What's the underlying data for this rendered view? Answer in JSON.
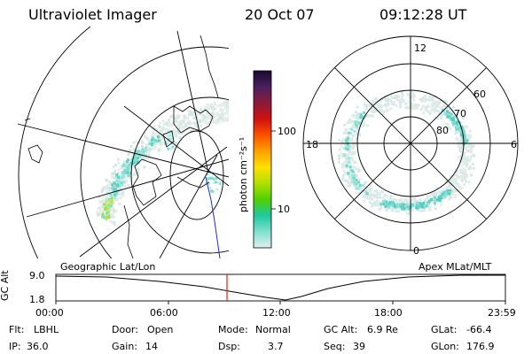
{
  "header": {
    "title": "Ultraviolet Imager",
    "date": "20 Oct 07",
    "time": "09:12:28 UT"
  },
  "colorbar": {
    "unit_label": "photon cm⁻²s⁻¹",
    "ticks": [
      "100",
      "10"
    ],
    "colors": [
      "#1a0a30",
      "#4a2060",
      "#8b1a3a",
      "#d01010",
      "#ff5000",
      "#ffa000",
      "#ffe000",
      "#b0e000",
      "#50d000",
      "#20c8a0",
      "#80e0d0",
      "#e0f0f0"
    ]
  },
  "left_panel": {
    "label": "Geographic Lat/Lon"
  },
  "right_panel": {
    "label": "Apex MLat/MLT",
    "mlt_labels": {
      "top": "12",
      "left": "18",
      "right": "6",
      "bottom": "0"
    },
    "lat_labels": [
      "60",
      "70",
      "80"
    ]
  },
  "altitude_strip": {
    "ylabel": "GC Alt",
    "y_ticks": [
      "9.0",
      "1.8"
    ],
    "x_ticks": [
      "00:00",
      "06:00",
      "12:00",
      "18:00",
      "23:59"
    ],
    "current_marker_color": "#e02020"
  },
  "status": {
    "flt_label": "Flt:",
    "flt_value": "LBHL",
    "ip_label": "IP:",
    "ip_value": "36.0",
    "door_label": "Door:",
    "door_value": "Open",
    "gain_label": "Gain:",
    "gain_value": "14",
    "mode_label": "Mode:",
    "mode_value": "Normal",
    "dsp_label": "Dsp:",
    "dsp_value": "3.7",
    "gcalt_label": "GC Alt:",
    "gcalt_value": "6.9 Re",
    "seq_label": "Seq:",
    "seq_value": "39",
    "glat_label": "GLat:",
    "glat_value": "-66.4",
    "glon_label": "GLon:",
    "glon_value": "176.9"
  }
}
